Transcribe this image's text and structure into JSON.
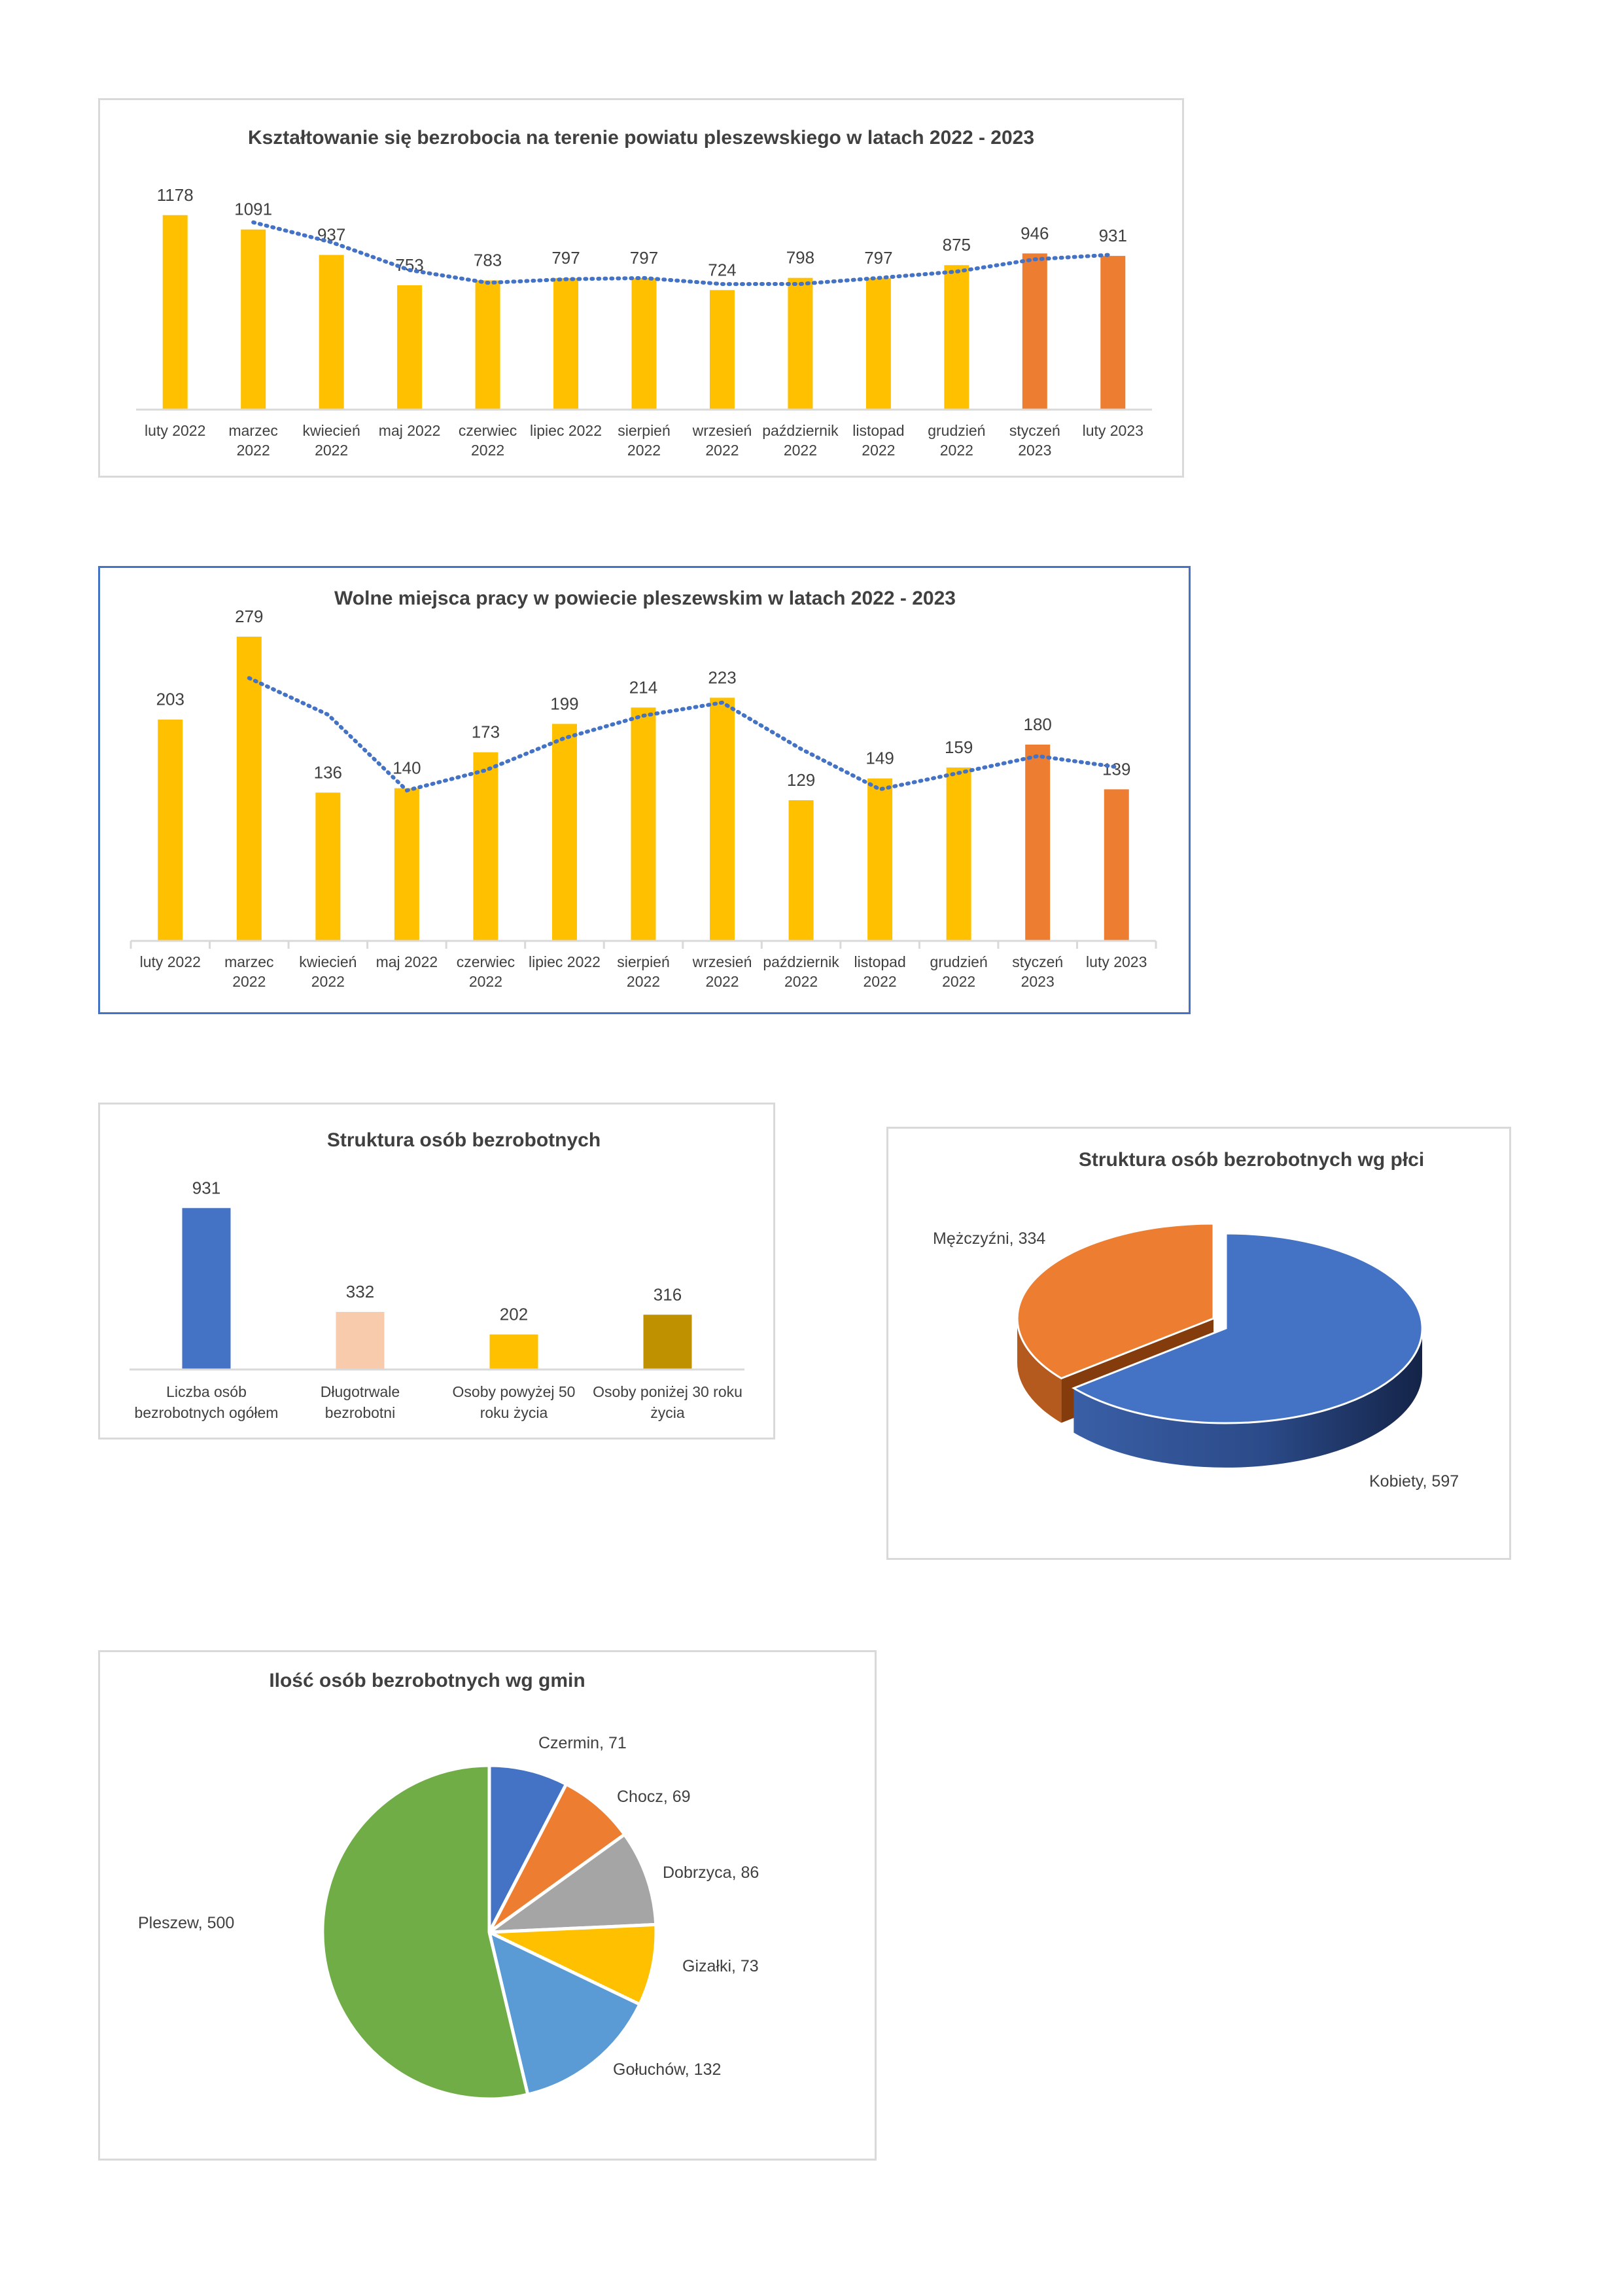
{
  "chart_data": [
    {
      "id": "unemployment",
      "type": "bar",
      "title": "Kształtowanie się bezrobocia na terenie powiatu pleszewskiego w latach 2022 - 2023",
      "categories": [
        [
          "luty 2022"
        ],
        [
          "marzec",
          "2022"
        ],
        [
          "kwiecień",
          "2022"
        ],
        [
          "maj 2022"
        ],
        [
          "czerwiec",
          "2022"
        ],
        [
          "lipiec 2022"
        ],
        [
          "sierpień",
          "2022"
        ],
        [
          "wrzesień",
          "2022"
        ],
        [
          "październik",
          "2022"
        ],
        [
          "listopad",
          "2022"
        ],
        [
          "grudzień",
          "2022"
        ],
        [
          "styczeń",
          "2023"
        ],
        [
          "luty 2023"
        ]
      ],
      "values": [
        1178,
        1091,
        937,
        753,
        783,
        797,
        797,
        724,
        798,
        797,
        875,
        946,
        931
      ],
      "bar_colors": [
        "#ffc000",
        "#ffc000",
        "#ffc000",
        "#ffc000",
        "#ffc000",
        "#ffc000",
        "#ffc000",
        "#ffc000",
        "#ffc000",
        "#ffc000",
        "#ffc000",
        "#ed7d31",
        "#ed7d31"
      ],
      "trendline": "moving-average-2",
      "trend_color": "#4472c4",
      "ylim": [
        0,
        1300
      ],
      "grid": false
    },
    {
      "id": "vacancies",
      "type": "bar",
      "title": "Wolne miejsca pracy w powiecie pleszewskim w latach 2022 - 2023",
      "categories": [
        [
          "luty 2022"
        ],
        [
          "marzec",
          "2022"
        ],
        [
          "kwiecień",
          "2022"
        ],
        [
          "maj 2022"
        ],
        [
          "czerwiec",
          "2022"
        ],
        [
          "lipiec 2022"
        ],
        [
          "sierpień",
          "2022"
        ],
        [
          "wrzesień",
          "2022"
        ],
        [
          "październik",
          "2022"
        ],
        [
          "listopad",
          "2022"
        ],
        [
          "grudzień",
          "2022"
        ],
        [
          "styczeń",
          "2023"
        ],
        [
          "luty 2023"
        ]
      ],
      "values": [
        203,
        279,
        136,
        140,
        173,
        199,
        214,
        223,
        129,
        149,
        159,
        180,
        139
      ],
      "bar_colors": [
        "#ffc000",
        "#ffc000",
        "#ffc000",
        "#ffc000",
        "#ffc000",
        "#ffc000",
        "#ffc000",
        "#ffc000",
        "#ffc000",
        "#ffc000",
        "#ffc000",
        "#ed7d31",
        "#ed7d31"
      ],
      "trendline": "moving-average-2",
      "trend_color": "#4472c4",
      "ylim": [
        0,
        300
      ],
      "grid": false
    },
    {
      "id": "structure",
      "type": "bar",
      "title": "Struktura osób bezrobotnych",
      "categories": [
        [
          "Liczba osób",
          "bezrobotnych ogółem"
        ],
        [
          "Długotrwale",
          "bezrobotni"
        ],
        [
          "Osoby powyżej 50",
          "roku życia"
        ],
        [
          "Osoby poniżej 30 roku",
          "życia"
        ]
      ],
      "values": [
        931,
        332,
        202,
        316
      ],
      "bar_colors": [
        "#4472c4",
        "#f8cbad",
        "#ffc000",
        "#bf9000"
      ],
      "ylim": [
        0,
        1000
      ],
      "grid": false
    },
    {
      "id": "gender",
      "type": "pie",
      "style": "3d-exploded",
      "title": "Struktura osób bezrobotnych wg płci",
      "slices": [
        {
          "label": "Mężczyźni, 334",
          "value": 334,
          "color": "#ed7d31"
        },
        {
          "label": "Kobiety, 597",
          "value": 597,
          "color": "#4472c4"
        }
      ]
    },
    {
      "id": "communes",
      "type": "pie",
      "title": "Ilość osób bezrobotnych wg gmin",
      "slices": [
        {
          "label": "Czermin, 71",
          "value": 71,
          "color": "#4472c4"
        },
        {
          "label": "Chocz, 69",
          "value": 69,
          "color": "#ed7d31"
        },
        {
          "label": "Dobrzyca, 86",
          "value": 86,
          "color": "#a5a5a5"
        },
        {
          "label": "Gizałki, 73",
          "value": 73,
          "color": "#ffc000"
        },
        {
          "label": "Gołuchów, 132",
          "value": 132,
          "color": "#5b9bd5"
        },
        {
          "label": "Pleszew, 500",
          "value": 500,
          "color": "#70ad47"
        }
      ]
    }
  ]
}
